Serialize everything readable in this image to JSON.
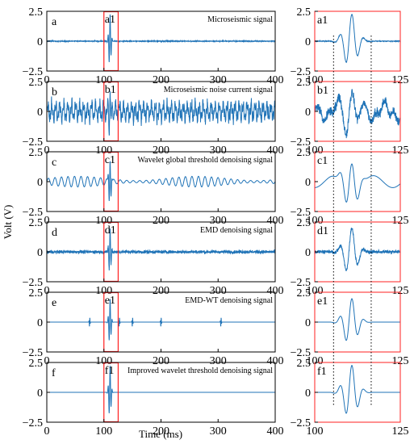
{
  "colors": {
    "signal": "#1f73b7",
    "highlight": "#ff2020",
    "axis": "#000000",
    "guide": "#000000"
  },
  "figure": {
    "ylabel": "Volt (V)",
    "xlabel": "Time (ms)"
  },
  "chart_data": [
    {
      "type": "line",
      "panel": "a",
      "title": "Microseismic signal",
      "xlim": [
        0,
        400
      ],
      "ylim": [
        -2.5,
        2.5
      ],
      "xticks": [
        "0",
        "100",
        "200",
        "300",
        "400"
      ],
      "yticks": [
        "2.5",
        "0",
        "−2.5"
      ],
      "highlight_x": [
        100,
        125
      ],
      "highlight_label": "a1",
      "noise": 0.05,
      "event_amp": 2.3,
      "spikes": []
    },
    {
      "type": "line",
      "panel": "b",
      "title": "Microseismic noise current signal",
      "xlim": [
        0,
        400
      ],
      "ylim": [
        -2.5,
        2.5
      ],
      "xticks": [
        "0",
        "100",
        "200",
        "300",
        "400"
      ],
      "yticks": [
        "2.5",
        "0",
        "−2.5"
      ],
      "highlight_x": [
        100,
        125
      ],
      "highlight_label": "b1",
      "noise": 1.1,
      "event_amp": 2.3,
      "spikes": []
    },
    {
      "type": "line",
      "panel": "c",
      "title": "Wavelet global threshold denoising signal",
      "xlim": [
        0,
        400
      ],
      "ylim": [
        -2.5,
        2.5
      ],
      "xticks": [
        "0",
        "100",
        "200",
        "300",
        "400"
      ],
      "yticks": [
        "2.5",
        "0",
        "−2.5"
      ],
      "highlight_x": [
        100,
        125
      ],
      "highlight_label": "c1",
      "noise": 0.55,
      "event_amp": 2.0,
      "spikes": []
    },
    {
      "type": "line",
      "panel": "d",
      "title": "EMD denoising signal",
      "xlim": [
        0,
        400
      ],
      "ylim": [
        -2.5,
        2.5
      ],
      "xticks": [
        "0",
        "100",
        "200",
        "300",
        "400"
      ],
      "yticks": [
        "2.5",
        "0",
        "−2.5"
      ],
      "highlight_x": [
        100,
        125
      ],
      "highlight_label": "d1",
      "noise": 0.35,
      "event_amp": 2.0,
      "spikes": []
    },
    {
      "type": "line",
      "panel": "e",
      "title": "EMD-WT denoising signal",
      "xlim": [
        0,
        400
      ],
      "ylim": [
        -2.5,
        2.5
      ],
      "xticks": [
        "0",
        "100",
        "200",
        "300",
        "400"
      ],
      "yticks": [
        "2.5",
        "0",
        "−2.5"
      ],
      "highlight_x": [
        100,
        125
      ],
      "highlight_label": "e1",
      "noise": 0.0,
      "event_amp": 2.0,
      "spikes": [
        75,
        127,
        150,
        200,
        305
      ]
    },
    {
      "type": "line",
      "panel": "f",
      "title": "Improved wavelet threshold denoising signal",
      "xlim": [
        0,
        400
      ],
      "ylim": [
        -2.5,
        2.5
      ],
      "xticks": [
        "0",
        "100",
        "200",
        "300",
        "400"
      ],
      "yticks": [
        "2.5",
        "0",
        "−2.5"
      ],
      "highlight_x": [
        100,
        125
      ],
      "highlight_label": "f1",
      "noise": 0.0,
      "event_amp": 2.3,
      "spikes": []
    },
    {
      "type": "line",
      "panel": "a1",
      "label": "a1",
      "xlim": [
        100,
        125
      ],
      "ylim": [
        -2.5,
        2.5
      ],
      "xticks": [
        "100",
        "125"
      ],
      "yticks": [
        "2.5",
        "0",
        "−2.5"
      ],
      "guides_x": [
        105.5,
        116.5
      ]
    },
    {
      "type": "line",
      "panel": "b1",
      "label": "b1",
      "xlim": [
        100,
        125
      ],
      "ylim": [
        -2.5,
        2.5
      ],
      "xticks": [
        "100",
        "125"
      ],
      "yticks": [
        "2.5",
        "0",
        "−2.5"
      ],
      "guides_x": [
        105.5,
        116.5
      ]
    },
    {
      "type": "line",
      "panel": "c1",
      "label": "c1",
      "xlim": [
        100,
        125
      ],
      "ylim": [
        -2.5,
        2.5
      ],
      "xticks": [
        "100",
        "125"
      ],
      "yticks": [
        "2.5",
        "0",
        "−2.5"
      ],
      "guides_x": [
        105.5,
        116.5
      ]
    },
    {
      "type": "line",
      "panel": "d1",
      "label": "d1",
      "xlim": [
        100,
        125
      ],
      "ylim": [
        -2.5,
        2.5
      ],
      "xticks": [
        "100",
        "125"
      ],
      "yticks": [
        "2.5",
        "0",
        "−2.5"
      ],
      "guides_x": [
        105.5,
        116.5
      ]
    },
    {
      "type": "line",
      "panel": "e1",
      "label": "e1",
      "xlim": [
        100,
        125
      ],
      "ylim": [
        -2.5,
        2.5
      ],
      "xticks": [
        "100",
        "125"
      ],
      "yticks": [
        "2.5",
        "0",
        "−2.5"
      ],
      "guides_x": [
        105.5,
        116.5
      ]
    },
    {
      "type": "line",
      "panel": "f1",
      "label": "f1",
      "xlim": [
        100,
        125
      ],
      "ylim": [
        -2.5,
        2.5
      ],
      "xticks": [
        "100",
        "125"
      ],
      "yticks": [
        "2.5",
        "0",
        "−2.5"
      ],
      "guides_x": [
        105.5,
        116.5
      ]
    }
  ]
}
